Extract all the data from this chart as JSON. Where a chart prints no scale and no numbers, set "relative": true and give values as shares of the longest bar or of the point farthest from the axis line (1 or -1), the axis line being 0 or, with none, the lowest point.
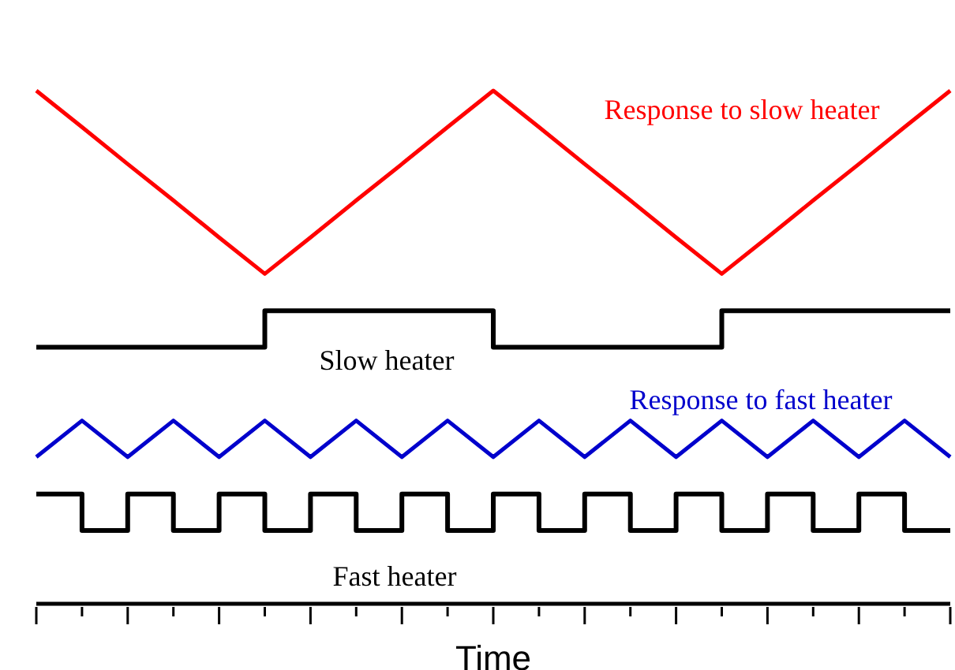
{
  "chart_data": {
    "type": "line",
    "relative": true,
    "xlabel": "Time",
    "categories": [
      null,
      null,
      null,
      null,
      null,
      null,
      null,
      null,
      null,
      null,
      null,
      null,
      null,
      null,
      null,
      null,
      null,
      null,
      null,
      null,
      null
    ],
    "marker": "none",
    "line_style": "solid",
    "series": [
      {
        "name": "Response to slow heater",
        "color": "#ff0000",
        "values": [
          1,
          0.929,
          0.857,
          0.786,
          0.714,
          0.643,
          0.714,
          0.786,
          0.857,
          0.929,
          1,
          0.929,
          0.857,
          0.786,
          0.714,
          0.643,
          0.714,
          0.786,
          0.857,
          0.929,
          1
        ]
      },
      {
        "name": "Slow heater",
        "type": "step",
        "color": "#000000",
        "values": [
          0.5,
          0.5,
          0.5,
          0.5,
          0.5,
          0.571,
          0.571,
          0.571,
          0.571,
          0.571,
          0.5,
          0.5,
          0.5,
          0.5,
          0.5,
          0.571,
          0.571,
          0.571,
          0.571,
          0.571,
          0.571
        ]
      },
      {
        "name": "Response to fast heater",
        "color": "#0000cc",
        "values": [
          0.286,
          0.357,
          0.286,
          0.357,
          0.286,
          0.357,
          0.286,
          0.357,
          0.286,
          0.357,
          0.286,
          0.357,
          0.286,
          0.357,
          0.286,
          0.357,
          0.286,
          0.357,
          0.286,
          0.357,
          0.286
        ]
      },
      {
        "name": "Fast heater",
        "type": "step",
        "color": "#000000",
        "values": [
          0.214,
          0.143,
          0.214,
          0.143,
          0.214,
          0.143,
          0.214,
          0.143,
          0.214,
          0.143,
          0.214,
          0.143,
          0.214,
          0.143,
          0.214,
          0.143,
          0.214,
          0.143,
          0.214,
          0.143,
          0.143
        ]
      }
    ]
  }
}
